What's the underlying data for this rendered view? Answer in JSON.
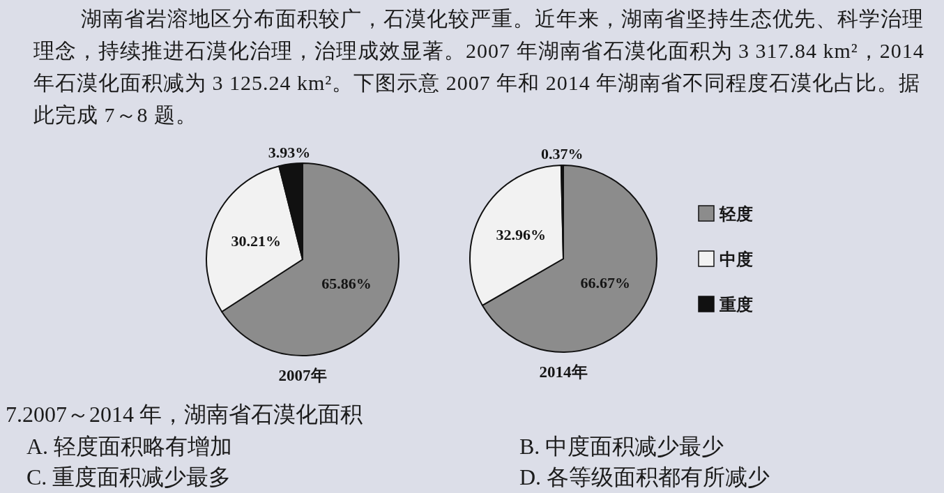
{
  "chart_data": [
    {
      "type": "pie",
      "title": "2007年",
      "categories": [
        null,
        null,
        null
      ],
      "values": [
        65.86,
        30.21,
        3.93
      ],
      "colors": [
        "#8c8c8c",
        "#f2f2f2",
        "#111111"
      ],
      "value_labels": [
        "65.86%",
        "30.21%",
        "3.93%"
      ],
      "annotations": [
        "湖南省岩溶地区分布面积较广，石漠化较严重。近年来，湖南省坚持生态优先、科学治理理念，持续推进石漠化治理，治理成效显著。2007 年湖南省石漠化面积为 3 317.84 km²，2014 年石漠化面积减为 3 125.24 km²。下图示意 2007 年和 2014 年湖南省不同程度石漠化占比。据此完成 7～8 题。"
      ]
    },
    {
      "type": "pie",
      "title": "2014年",
      "categories": [
        "轻度",
        "中度",
        "重度"
      ],
      "values": [
        66.67,
        32.96,
        0.37
      ],
      "colors": [
        "#8c8c8c",
        "#f2f2f2",
        "#111111"
      ],
      "value_labels": [
        "66.67%",
        "32.96%",
        "0.37%"
      ],
      "legend": "right",
      "annotations": [
        "7.2007～2014 年，湖南省石漠化面积",
        "A. 轻度面积略有增加",
        "B. 中度面积减少最少",
        "C. 重度面积减少最多",
        "D. 各等级面积都有所减少"
      ]
    }
  ]
}
